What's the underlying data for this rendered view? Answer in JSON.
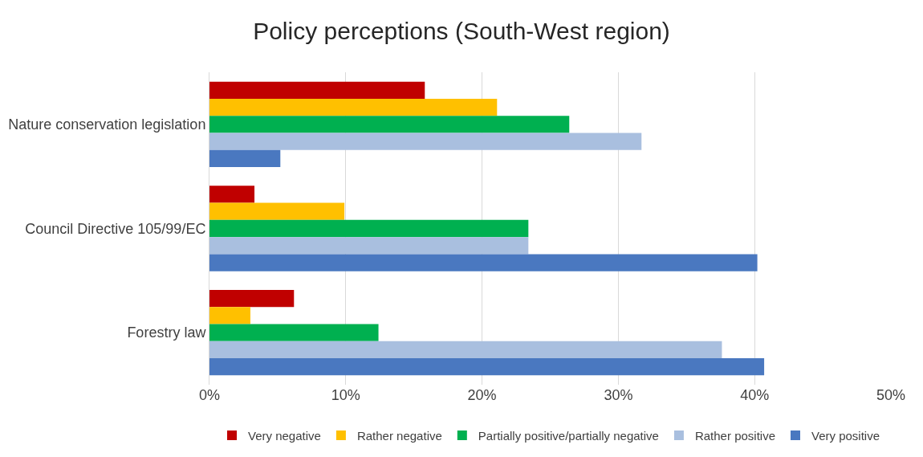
{
  "chart_data": {
    "type": "bar",
    "orientation": "horizontal",
    "title": "Policy perceptions (South-West region)",
    "categories": [
      "Nature conservation legislation",
      "Council Directive 105/99/EC",
      "Forestry law"
    ],
    "series": [
      {
        "name": "Very negative",
        "color": "#c00000",
        "values": [
          15.8,
          3.3,
          6.2
        ]
      },
      {
        "name": "Rather negative",
        "color": "#ffc000",
        "values": [
          21.1,
          9.9,
          3.0
        ]
      },
      {
        "name": "Partially positive/partially negative",
        "color": "#00b050",
        "values": [
          26.4,
          23.4,
          12.4
        ]
      },
      {
        "name": "Rather positive",
        "color": "#a9bfdf",
        "values": [
          31.7,
          23.4,
          37.6
        ]
      },
      {
        "name": "Very positive",
        "color": "#4a78c0",
        "values": [
          5.2,
          40.2,
          40.7
        ]
      }
    ],
    "xlim": [
      0,
      50
    ],
    "xticks": [
      {
        "value": 0,
        "label": "0%"
      },
      {
        "value": 10,
        "label": "10%"
      },
      {
        "value": 20,
        "label": "20%"
      },
      {
        "value": 30,
        "label": "30%"
      },
      {
        "value": 40,
        "label": "40%"
      },
      {
        "value": 50,
        "label": "50%"
      }
    ],
    "grid": "x",
    "legend": "bottom"
  }
}
